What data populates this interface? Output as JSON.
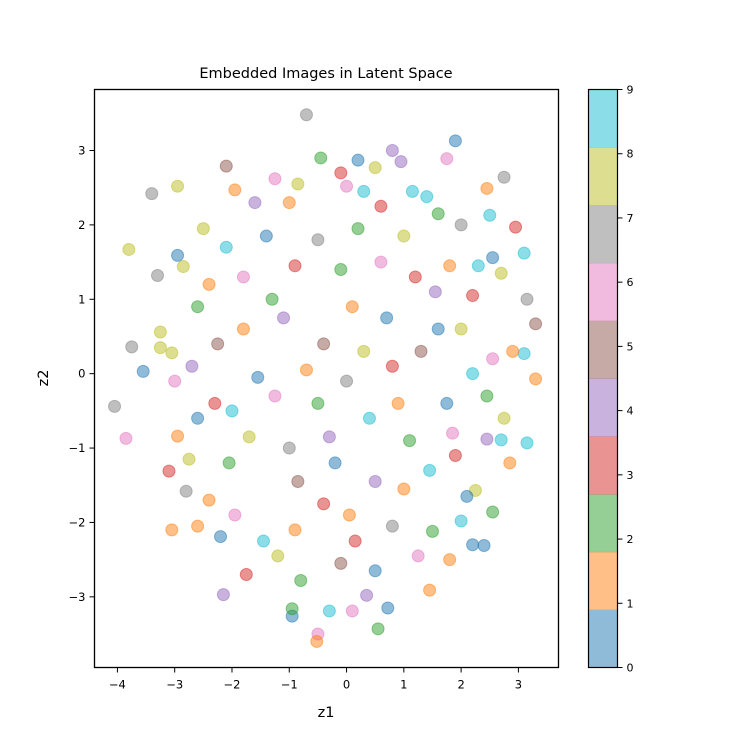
{
  "chart_data": {
    "type": "scatter",
    "title": "Embedded Images in Latent Space",
    "xlabel": "z1",
    "ylabel": "z2",
    "xlim": [
      -4.4,
      3.7
    ],
    "ylim": [
      -3.95,
      3.82
    ],
    "xticks": [
      -4,
      -3,
      -2,
      -1,
      0,
      1,
      2,
      3
    ],
    "yticks": [
      -3,
      -2,
      -1,
      0,
      1,
      2,
      3
    ],
    "xtick_labels": [
      "−4",
      "−3",
      "−2",
      "−1",
      "0",
      "1",
      "2",
      "3"
    ],
    "ytick_labels": [
      "−3",
      "−2",
      "−1",
      "0",
      "1",
      "2",
      "3"
    ],
    "grid": false,
    "marker_alpha": 0.5,
    "colormap": "tab10",
    "class_colors": [
      "#1f77b4",
      "#ff7f0e",
      "#2ca02c",
      "#d62728",
      "#9467bd",
      "#8c564b",
      "#e377c2",
      "#7f7f7f",
      "#bcbd22",
      "#17becf"
    ],
    "colorbar": {
      "range": [
        0,
        9
      ],
      "ticks": [
        0,
        1,
        2,
        3,
        4,
        5,
        6,
        7,
        8,
        9
      ],
      "tick_labels": [
        "0",
        "1",
        "2",
        "3",
        "4",
        "5",
        "6",
        "7",
        "8",
        "9"
      ]
    },
    "points": [
      {
        "x": -0.7,
        "y": 3.48,
        "c": 7
      },
      {
        "x": 1.9,
        "y": 3.13,
        "c": 0
      },
      {
        "x": -4.05,
        "y": -0.44,
        "c": 7
      },
      {
        "x": -3.85,
        "y": -0.87,
        "c": 6
      },
      {
        "x": -3.55,
        "y": 0.03,
        "c": 0
      },
      {
        "x": -3.75,
        "y": 0.36,
        "c": 7
      },
      {
        "x": -3.8,
        "y": 1.67,
        "c": 8
      },
      {
        "x": -3.4,
        "y": 2.42,
        "c": 7
      },
      {
        "x": -2.95,
        "y": 2.52,
        "c": 8
      },
      {
        "x": -2.1,
        "y": 2.79,
        "c": 5
      },
      {
        "x": 0.8,
        "y": 3.0,
        "c": 4
      },
      {
        "x": 1.75,
        "y": 2.89,
        "c": 6
      },
      {
        "x": 2.75,
        "y": 2.64,
        "c": 7
      },
      {
        "x": 2.45,
        "y": 2.49,
        "c": 1
      },
      {
        "x": 2.95,
        "y": 1.97,
        "c": 3
      },
      {
        "x": 3.1,
        "y": 1.62,
        "c": 9
      },
      {
        "x": 3.15,
        "y": 1.0,
        "c": 7
      },
      {
        "x": 3.3,
        "y": 0.67,
        "c": 5
      },
      {
        "x": 3.1,
        "y": 0.27,
        "c": 9
      },
      {
        "x": 3.3,
        "y": -0.07,
        "c": 1
      },
      {
        "x": 3.15,
        "y": -0.93,
        "c": 9
      },
      {
        "x": 2.7,
        "y": -0.89,
        "c": 9
      },
      {
        "x": 2.85,
        "y": -1.2,
        "c": 1
      },
      {
        "x": 2.55,
        "y": -1.86,
        "c": 2
      },
      {
        "x": 2.4,
        "y": -2.31,
        "c": 0
      },
      {
        "x": 2.2,
        "y": -2.3,
        "c": 0
      },
      {
        "x": 1.45,
        "y": -2.91,
        "c": 1
      },
      {
        "x": 0.72,
        "y": -3.15,
        "c": 0
      },
      {
        "x": 0.55,
        "y": -3.43,
        "c": 2
      },
      {
        "x": 0.1,
        "y": -3.19,
        "c": 6
      },
      {
        "x": -0.3,
        "y": -3.19,
        "c": 9
      },
      {
        "x": -0.5,
        "y": -3.5,
        "c": 6
      },
      {
        "x": -0.52,
        "y": -3.6,
        "c": 1
      },
      {
        "x": -0.95,
        "y": -3.26,
        "c": 0
      },
      {
        "x": -0.95,
        "y": -3.16,
        "c": 2
      },
      {
        "x": -2.15,
        "y": -2.97,
        "c": 4
      },
      {
        "x": -3.05,
        "y": -2.1,
        "c": 1
      },
      {
        "x": -3.1,
        "y": -1.31,
        "c": 3
      },
      {
        "x": -2.8,
        "y": -1.58,
        "c": 7
      },
      {
        "x": -2.95,
        "y": -0.84,
        "c": 1
      },
      {
        "x": -2.95,
        "y": 1.59,
        "c": 0
      },
      {
        "x": -3.3,
        "y": 1.32,
        "c": 7
      },
      {
        "x": -3.25,
        "y": 0.56,
        "c": 8
      },
      {
        "x": -3.25,
        "y": 0.35,
        "c": 8
      },
      {
        "x": -3.05,
        "y": 0.28,
        "c": 8
      },
      {
        "x": 0.5,
        "y": 2.77,
        "c": 8
      },
      {
        "x": -0.45,
        "y": 2.9,
        "c": 2
      },
      {
        "x": 0.2,
        "y": 2.87,
        "c": 0
      },
      {
        "x": 0.95,
        "y": 2.85,
        "c": 4
      },
      {
        "x": -1.25,
        "y": 2.62,
        "c": 6
      },
      {
        "x": -0.1,
        "y": 2.7,
        "c": 3
      },
      {
        "x": 1.15,
        "y": 2.45,
        "c": 9
      },
      {
        "x": 2.0,
        "y": 2.0,
        "c": 7
      },
      {
        "x": 2.5,
        "y": 2.13,
        "c": 9
      },
      {
        "x": 2.55,
        "y": 1.56,
        "c": 0
      },
      {
        "x": 2.7,
        "y": 1.35,
        "c": 8
      },
      {
        "x": 2.9,
        "y": 0.3,
        "c": 1
      },
      {
        "x": 2.75,
        "y": -0.6,
        "c": 8
      },
      {
        "x": 2.25,
        "y": -1.57,
        "c": 8
      },
      {
        "x": 2.0,
        "y": -1.98,
        "c": 9
      },
      {
        "x": 1.8,
        "y": -2.5,
        "c": 1
      },
      {
        "x": 0.35,
        "y": -2.98,
        "c": 4
      },
      {
        "x": 0.5,
        "y": -2.65,
        "c": 0
      },
      {
        "x": -0.8,
        "y": -2.78,
        "c": 2
      },
      {
        "x": -1.75,
        "y": -2.7,
        "c": 3
      },
      {
        "x": -2.2,
        "y": -2.19,
        "c": 0
      },
      {
        "x": -2.6,
        "y": -2.05,
        "c": 1
      },
      {
        "x": -2.75,
        "y": -1.15,
        "c": 8
      },
      {
        "x": -3.0,
        "y": -0.1,
        "c": 6
      },
      {
        "x": -2.85,
        "y": 1.44,
        "c": 8
      },
      {
        "x": -2.5,
        "y": 1.95,
        "c": 8
      },
      {
        "x": -1.95,
        "y": 2.47,
        "c": 1
      },
      {
        "x": -0.85,
        "y": 2.55,
        "c": 8
      },
      {
        "x": 0.0,
        "y": 2.52,
        "c": 6
      },
      {
        "x": 1.4,
        "y": 2.38,
        "c": 9
      },
      {
        "x": 2.2,
        "y": 1.05,
        "c": 3
      },
      {
        "x": 2.55,
        "y": 0.2,
        "c": 6
      },
      {
        "x": 2.45,
        "y": -0.88,
        "c": 4
      },
      {
        "x": 1.5,
        "y": -2.12,
        "c": 2
      },
      {
        "x": -0.1,
        "y": -2.55,
        "c": 5
      },
      {
        "x": -1.45,
        "y": -2.25,
        "c": 9
      },
      {
        "x": -2.4,
        "y": -1.7,
        "c": 1
      },
      {
        "x": -2.6,
        "y": -0.6,
        "c": 0
      },
      {
        "x": -2.6,
        "y": 0.9,
        "c": 2
      },
      {
        "x": -1.6,
        "y": 2.3,
        "c": 4
      },
      {
        "x": 0.6,
        "y": 2.25,
        "c": 3
      },
      {
        "x": 1.8,
        "y": 1.45,
        "c": 1
      },
      {
        "x": 2.2,
        "y": 0.0,
        "c": 9
      },
      {
        "x": 1.9,
        "y": -1.1,
        "c": 3
      },
      {
        "x": 0.8,
        "y": -2.05,
        "c": 7
      },
      {
        "x": -0.9,
        "y": -2.1,
        "c": 1
      },
      {
        "x": -2.05,
        "y": -1.2,
        "c": 2
      },
      {
        "x": -2.25,
        "y": 0.4,
        "c": 5
      },
      {
        "x": -1.4,
        "y": 1.85,
        "c": 0
      },
      {
        "x": 0.2,
        "y": 1.95,
        "c": 2
      },
      {
        "x": 1.55,
        "y": 1.1,
        "c": 4
      },
      {
        "x": 1.75,
        "y": -0.4,
        "c": 0
      },
      {
        "x": 1.0,
        "y": -1.55,
        "c": 1
      },
      {
        "x": -0.4,
        "y": -1.75,
        "c": 3
      },
      {
        "x": -1.7,
        "y": -0.85,
        "c": 8
      },
      {
        "x": -1.8,
        "y": 0.6,
        "c": 1
      },
      {
        "x": -0.9,
        "y": 1.45,
        "c": 3
      },
      {
        "x": 0.6,
        "y": 1.5,
        "c": 6
      },
      {
        "x": 1.3,
        "y": 0.3,
        "c": 5
      },
      {
        "x": 1.1,
        "y": -0.9,
        "c": 2
      },
      {
        "x": -0.2,
        "y": -1.2,
        "c": 0
      },
      {
        "x": -1.25,
        "y": -0.3,
        "c": 6
      },
      {
        "x": -1.1,
        "y": 0.75,
        "c": 4
      },
      {
        "x": 0.1,
        "y": 0.9,
        "c": 1
      },
      {
        "x": 0.8,
        "y": 0.1,
        "c": 3
      },
      {
        "x": 0.4,
        "y": -0.6,
        "c": 9
      },
      {
        "x": -0.5,
        "y": -0.4,
        "c": 2
      },
      {
        "x": -0.4,
        "y": 0.4,
        "c": 5
      },
      {
        "x": 0.3,
        "y": 0.3,
        "c": 8
      },
      {
        "x": 0.0,
        "y": -0.1,
        "c": 7
      },
      {
        "x": -2.4,
        "y": 1.2,
        "c": 1
      },
      {
        "x": -2.7,
        "y": 0.1,
        "c": 4
      },
      {
        "x": -2.3,
        "y": -0.4,
        "c": 3
      },
      {
        "x": -1.95,
        "y": -1.9,
        "c": 6
      },
      {
        "x": -1.2,
        "y": -2.45,
        "c": 8
      },
      {
        "x": 0.15,
        "y": -2.25,
        "c": 3
      },
      {
        "x": 1.25,
        "y": -2.45,
        "c": 6
      },
      {
        "x": 2.1,
        "y": -1.65,
        "c": 0
      },
      {
        "x": 2.45,
        "y": -0.3,
        "c": 2
      },
      {
        "x": 2.3,
        "y": 1.45,
        "c": 9
      },
      {
        "x": 1.6,
        "y": 2.15,
        "c": 2
      },
      {
        "x": 0.3,
        "y": 2.45,
        "c": 9
      },
      {
        "x": -1.0,
        "y": 2.3,
        "c": 1
      },
      {
        "x": -2.1,
        "y": 1.7,
        "c": 9
      },
      {
        "x": -1.3,
        "y": 1.0,
        "c": 2
      },
      {
        "x": -0.5,
        "y": 1.8,
        "c": 7
      },
      {
        "x": 1.0,
        "y": 1.85,
        "c": 8
      },
      {
        "x": 1.6,
        "y": 0.6,
        "c": 0
      },
      {
        "x": 1.45,
        "y": -1.3,
        "c": 9
      },
      {
        "x": 0.5,
        "y": -1.45,
        "c": 4
      },
      {
        "x": -0.85,
        "y": -1.45,
        "c": 5
      },
      {
        "x": -1.55,
        "y": -0.05,
        "c": 0
      },
      {
        "x": -0.7,
        "y": 0.05,
        "c": 1
      },
      {
        "x": 0.7,
        "y": 0.75,
        "c": 0
      },
      {
        "x": -0.1,
        "y": 1.4,
        "c": 2
      },
      {
        "x": 0.9,
        "y": -0.4,
        "c": 1
      },
      {
        "x": -0.3,
        "y": -0.85,
        "c": 4
      },
      {
        "x": -1.0,
        "y": -1.0,
        "c": 7
      },
      {
        "x": 1.2,
        "y": 1.3,
        "c": 3
      },
      {
        "x": 2.0,
        "y": 0.6,
        "c": 8
      },
      {
        "x": -1.8,
        "y": 1.3,
        "c": 6
      },
      {
        "x": -2.0,
        "y": -0.5,
        "c": 9
      },
      {
        "x": 0.05,
        "y": -1.9,
        "c": 1
      },
      {
        "x": 1.85,
        "y": -0.8,
        "c": 6
      }
    ]
  }
}
